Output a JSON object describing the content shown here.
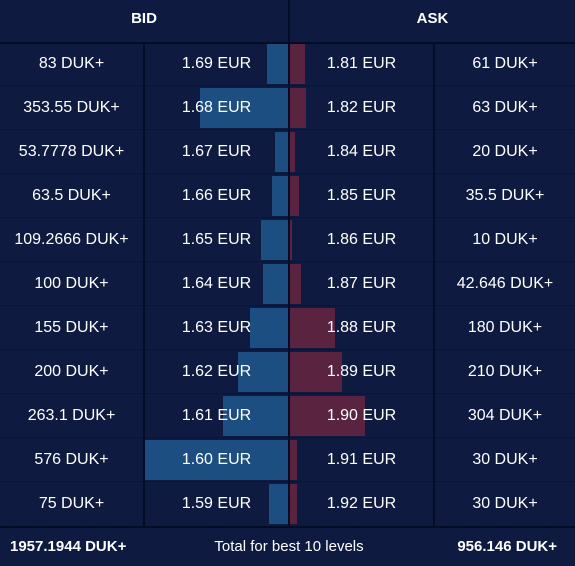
{
  "header": {
    "bid_label": "BID",
    "ask_label": "ASK"
  },
  "colors": {
    "background": "#0e1a3f",
    "bid_bar": "#1c4e82",
    "ask_bar": "#5a2441"
  },
  "rows": [
    {
      "bid_qty": "83 DUK+",
      "bid_price": "1.69 EUR",
      "ask_price": "1.81 EUR",
      "ask_qty": "61 DUK+"
    },
    {
      "bid_qty": "353.55 DUK+",
      "bid_price": "1.68 EUR",
      "ask_price": "1.82 EUR",
      "ask_qty": "63 DUK+"
    },
    {
      "bid_qty": "53.7778 DUK+",
      "bid_price": "1.67 EUR",
      "ask_price": "1.84 EUR",
      "ask_qty": "20 DUK+"
    },
    {
      "bid_qty": "63.5 DUK+",
      "bid_price": "1.66 EUR",
      "ask_price": "1.85 EUR",
      "ask_qty": "35.5 DUK+"
    },
    {
      "bid_qty": "109.2666 DUK+",
      "bid_price": "1.65 EUR",
      "ask_price": "1.86 EUR",
      "ask_qty": "10 DUK+"
    },
    {
      "bid_qty": "100 DUK+",
      "bid_price": "1.64 EUR",
      "ask_price": "1.87 EUR",
      "ask_qty": "42.646 DUK+"
    },
    {
      "bid_qty": "155 DUK+",
      "bid_price": "1.63 EUR",
      "ask_price": "1.88 EUR",
      "ask_qty": "180 DUK+"
    },
    {
      "bid_qty": "200 DUK+",
      "bid_price": "1.62 EUR",
      "ask_price": "1.89 EUR",
      "ask_qty": "210 DUK+"
    },
    {
      "bid_qty": "263.1 DUK+",
      "bid_price": "1.61 EUR",
      "ask_price": "1.90 EUR",
      "ask_qty": "304 DUK+"
    },
    {
      "bid_qty": "576 DUK+",
      "bid_price": "1.60 EUR",
      "ask_price": "1.91 EUR",
      "ask_qty": "30 DUK+"
    },
    {
      "bid_qty": "75 DUK+",
      "bid_price": "1.59 EUR",
      "ask_price": "1.92 EUR",
      "ask_qty": "30 DUK+"
    }
  ],
  "depth": {
    "bid_values": [
      83,
      353.55,
      53.7778,
      63.5,
      109.2666,
      100,
      155,
      200,
      263.1,
      576,
      75
    ],
    "ask_values": [
      61,
      63,
      20,
      35.5,
      10,
      42.646,
      180,
      210,
      304,
      30,
      30
    ]
  },
  "footer": {
    "bid_total": "1957.1944 DUK+",
    "label": "Total for best 10 levels",
    "ask_total": "956.146 DUK+"
  }
}
